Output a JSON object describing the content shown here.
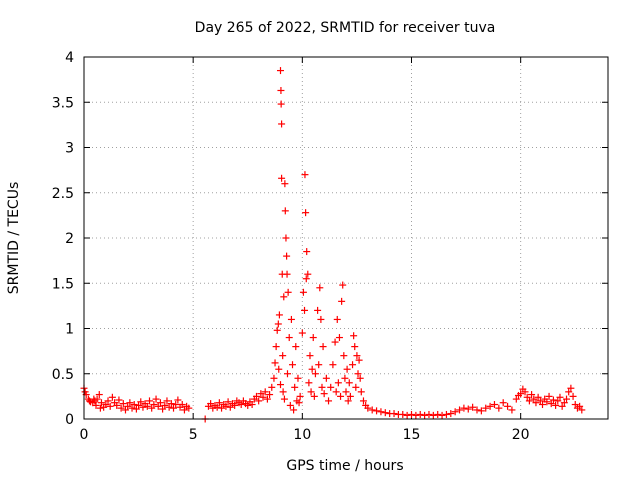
{
  "chart_data": {
    "type": "scatter",
    "title": "Day 265 of 2022, SRMTID for receiver tuva",
    "xlabel": "GPS time / hours",
    "ylabel": "SRMTID / TECUs",
    "xlim": [
      0,
      24
    ],
    "ylim": [
      0,
      4
    ],
    "xticks": [
      0,
      5,
      10,
      15,
      20
    ],
    "xtick_labels": [
      "0",
      "5",
      "10",
      "15",
      "20"
    ],
    "yticks": [
      0,
      0.5,
      1,
      1.5,
      2,
      2.5,
      3,
      3.5,
      4
    ],
    "ytick_labels": [
      "0",
      "0.5",
      "1",
      "1.5",
      "2",
      "2.5",
      "3",
      "3.5",
      "4"
    ],
    "grid": true,
    "marker": "+",
    "color": "#ff0000",
    "series": [
      {
        "name": "SRMTID",
        "points": [
          [
            0.0,
            0.34
          ],
          [
            0.05,
            0.3
          ],
          [
            0.1,
            0.27
          ],
          [
            0.2,
            0.22
          ],
          [
            0.25,
            0.2
          ],
          [
            0.3,
            0.19
          ],
          [
            0.4,
            0.18
          ],
          [
            0.45,
            0.22
          ],
          [
            0.5,
            0.2
          ],
          [
            0.55,
            0.15
          ],
          [
            0.6,
            0.22
          ],
          [
            0.7,
            0.27
          ],
          [
            0.75,
            0.12
          ],
          [
            0.8,
            0.18
          ],
          [
            0.9,
            0.13
          ],
          [
            1.0,
            0.16
          ],
          [
            1.1,
            0.2
          ],
          [
            1.2,
            0.14
          ],
          [
            1.3,
            0.24
          ],
          [
            1.4,
            0.18
          ],
          [
            1.5,
            0.15
          ],
          [
            1.6,
            0.21
          ],
          [
            1.7,
            0.12
          ],
          [
            1.8,
            0.17
          ],
          [
            1.9,
            0.1
          ],
          [
            2.0,
            0.14
          ],
          [
            2.1,
            0.18
          ],
          [
            2.2,
            0.12
          ],
          [
            2.3,
            0.16
          ],
          [
            2.4,
            0.11
          ],
          [
            2.5,
            0.15
          ],
          [
            2.6,
            0.19
          ],
          [
            2.7,
            0.13
          ],
          [
            2.8,
            0.17
          ],
          [
            2.9,
            0.14
          ],
          [
            3.0,
            0.2
          ],
          [
            3.1,
            0.12
          ],
          [
            3.2,
            0.16
          ],
          [
            3.3,
            0.22
          ],
          [
            3.4,
            0.14
          ],
          [
            3.5,
            0.18
          ],
          [
            3.6,
            0.11
          ],
          [
            3.7,
            0.15
          ],
          [
            3.8,
            0.2
          ],
          [
            3.9,
            0.13
          ],
          [
            4.0,
            0.17
          ],
          [
            4.1,
            0.12
          ],
          [
            4.2,
            0.16
          ],
          [
            4.3,
            0.21
          ],
          [
            4.4,
            0.13
          ],
          [
            4.5,
            0.16
          ],
          [
            4.6,
            0.1
          ],
          [
            4.7,
            0.14
          ],
          [
            4.8,
            0.12
          ],
          [
            5.55,
            0.0
          ],
          [
            5.7,
            0.14
          ],
          [
            5.8,
            0.17
          ],
          [
            5.9,
            0.12
          ],
          [
            6.0,
            0.15
          ],
          [
            6.1,
            0.13
          ],
          [
            6.2,
            0.18
          ],
          [
            6.3,
            0.12
          ],
          [
            6.4,
            0.16
          ],
          [
            6.5,
            0.14
          ],
          [
            6.6,
            0.19
          ],
          [
            6.7,
            0.13
          ],
          [
            6.8,
            0.17
          ],
          [
            6.9,
            0.15
          ],
          [
            7.0,
            0.2
          ],
          [
            7.1,
            0.18
          ],
          [
            7.2,
            0.16
          ],
          [
            7.3,
            0.2
          ],
          [
            7.4,
            0.17
          ],
          [
            7.5,
            0.15
          ],
          [
            7.6,
            0.19
          ],
          [
            7.7,
            0.16
          ],
          [
            7.8,
            0.22
          ],
          [
            7.9,
            0.25
          ],
          [
            8.0,
            0.2
          ],
          [
            8.1,
            0.28
          ],
          [
            8.2,
            0.24
          ],
          [
            8.3,
            0.3
          ],
          [
            8.4,
            0.22
          ],
          [
            8.5,
            0.27
          ],
          [
            8.6,
            0.35
          ],
          [
            8.7,
            0.45
          ],
          [
            8.75,
            0.62
          ],
          [
            8.8,
            0.8
          ],
          [
            8.85,
            0.98
          ],
          [
            8.9,
            1.05
          ],
          [
            8.92,
            0.55
          ],
          [
            8.95,
            1.15
          ],
          [
            9.0,
            0.38
          ],
          [
            9.0,
            3.85
          ],
          [
            9.02,
            3.63
          ],
          [
            9.03,
            3.48
          ],
          [
            9.05,
            3.26
          ],
          [
            9.05,
            2.66
          ],
          [
            9.08,
            1.6
          ],
          [
            9.1,
            0.7
          ],
          [
            9.12,
            0.3
          ],
          [
            9.15,
            1.35
          ],
          [
            9.18,
            0.22
          ],
          [
            9.2,
            2.6
          ],
          [
            9.22,
            2.3
          ],
          [
            9.25,
            2.0
          ],
          [
            9.28,
            1.8
          ],
          [
            9.3,
            1.6
          ],
          [
            9.32,
            0.5
          ],
          [
            9.35,
            1.4
          ],
          [
            9.4,
            0.9
          ],
          [
            9.45,
            0.15
          ],
          [
            9.5,
            1.1
          ],
          [
            9.55,
            0.6
          ],
          [
            9.6,
            0.1
          ],
          [
            9.65,
            0.35
          ],
          [
            9.7,
            0.8
          ],
          [
            9.75,
            0.2
          ],
          [
            9.8,
            0.45
          ],
          [
            9.85,
            0.18
          ],
          [
            9.9,
            0.25
          ],
          [
            10.0,
            0.95
          ],
          [
            10.05,
            1.4
          ],
          [
            10.1,
            1.2
          ],
          [
            10.12,
            2.7
          ],
          [
            10.15,
            2.28
          ],
          [
            10.18,
            1.55
          ],
          [
            10.2,
            1.85
          ],
          [
            10.25,
            1.6
          ],
          [
            10.3,
            0.4
          ],
          [
            10.35,
            0.7
          ],
          [
            10.4,
            0.3
          ],
          [
            10.45,
            0.55
          ],
          [
            10.5,
            0.9
          ],
          [
            10.55,
            0.25
          ],
          [
            10.6,
            0.5
          ],
          [
            10.7,
            1.2
          ],
          [
            10.75,
            0.6
          ],
          [
            10.8,
            1.45
          ],
          [
            10.85,
            1.1
          ],
          [
            10.9,
            0.35
          ],
          [
            10.95,
            0.8
          ],
          [
            11.0,
            0.28
          ],
          [
            11.1,
            0.45
          ],
          [
            11.2,
            0.2
          ],
          [
            11.3,
            0.35
          ],
          [
            11.4,
            0.6
          ],
          [
            11.5,
            0.85
          ],
          [
            11.55,
            0.3
          ],
          [
            11.6,
            1.1
          ],
          [
            11.65,
            0.4
          ],
          [
            11.7,
            0.9
          ],
          [
            11.75,
            0.25
          ],
          [
            11.8,
            1.3
          ],
          [
            11.85,
            1.48
          ],
          [
            11.9,
            0.7
          ],
          [
            11.95,
            0.45
          ],
          [
            12.0,
            0.3
          ],
          [
            12.05,
            0.55
          ],
          [
            12.1,
            0.2
          ],
          [
            12.15,
            0.4
          ],
          [
            12.2,
            0.25
          ],
          [
            12.3,
            0.6
          ],
          [
            12.35,
            0.92
          ],
          [
            12.4,
            0.8
          ],
          [
            12.45,
            0.35
          ],
          [
            12.5,
            0.7
          ],
          [
            12.55,
            0.5
          ],
          [
            12.6,
            0.65
          ],
          [
            12.65,
            0.45
          ],
          [
            12.7,
            0.3
          ],
          [
            12.8,
            0.2
          ],
          [
            12.9,
            0.15
          ],
          [
            13.0,
            0.12
          ],
          [
            13.2,
            0.1
          ],
          [
            13.4,
            0.09
          ],
          [
            13.6,
            0.08
          ],
          [
            13.8,
            0.07
          ],
          [
            14.0,
            0.06
          ],
          [
            14.2,
            0.06
          ],
          [
            14.4,
            0.05
          ],
          [
            14.6,
            0.05
          ],
          [
            14.8,
            0.04
          ],
          [
            15.0,
            0.05
          ],
          [
            15.2,
            0.04
          ],
          [
            15.4,
            0.05
          ],
          [
            15.6,
            0.04
          ],
          [
            15.8,
            0.05
          ],
          [
            16.0,
            0.04
          ],
          [
            16.2,
            0.05
          ],
          [
            16.4,
            0.04
          ],
          [
            16.6,
            0.05
          ],
          [
            16.8,
            0.06
          ],
          [
            17.0,
            0.08
          ],
          [
            17.2,
            0.1
          ],
          [
            17.4,
            0.12
          ],
          [
            17.6,
            0.11
          ],
          [
            17.8,
            0.13
          ],
          [
            18.0,
            0.1
          ],
          [
            18.2,
            0.09
          ],
          [
            18.4,
            0.12
          ],
          [
            18.6,
            0.14
          ],
          [
            18.8,
            0.16
          ],
          [
            19.0,
            0.12
          ],
          [
            19.2,
            0.18
          ],
          [
            19.4,
            0.14
          ],
          [
            19.6,
            0.1
          ],
          [
            19.8,
            0.22
          ],
          [
            19.9,
            0.26
          ],
          [
            20.0,
            0.28
          ],
          [
            20.1,
            0.33
          ],
          [
            20.2,
            0.3
          ],
          [
            20.3,
            0.24
          ],
          [
            20.4,
            0.2
          ],
          [
            20.5,
            0.27
          ],
          [
            20.6,
            0.22
          ],
          [
            20.7,
            0.18
          ],
          [
            20.8,
            0.24
          ],
          [
            20.9,
            0.2
          ],
          [
            21.0,
            0.16
          ],
          [
            21.1,
            0.22
          ],
          [
            21.2,
            0.19
          ],
          [
            21.3,
            0.25
          ],
          [
            21.4,
            0.17
          ],
          [
            21.5,
            0.21
          ],
          [
            21.6,
            0.15
          ],
          [
            21.7,
            0.2
          ],
          [
            21.8,
            0.24
          ],
          [
            21.9,
            0.14
          ],
          [
            22.0,
            0.18
          ],
          [
            22.1,
            0.22
          ],
          [
            22.2,
            0.3
          ],
          [
            22.3,
            0.34
          ],
          [
            22.4,
            0.25
          ],
          [
            22.5,
            0.16
          ],
          [
            22.6,
            0.12
          ],
          [
            22.7,
            0.14
          ],
          [
            22.8,
            0.1
          ]
        ]
      }
    ]
  }
}
